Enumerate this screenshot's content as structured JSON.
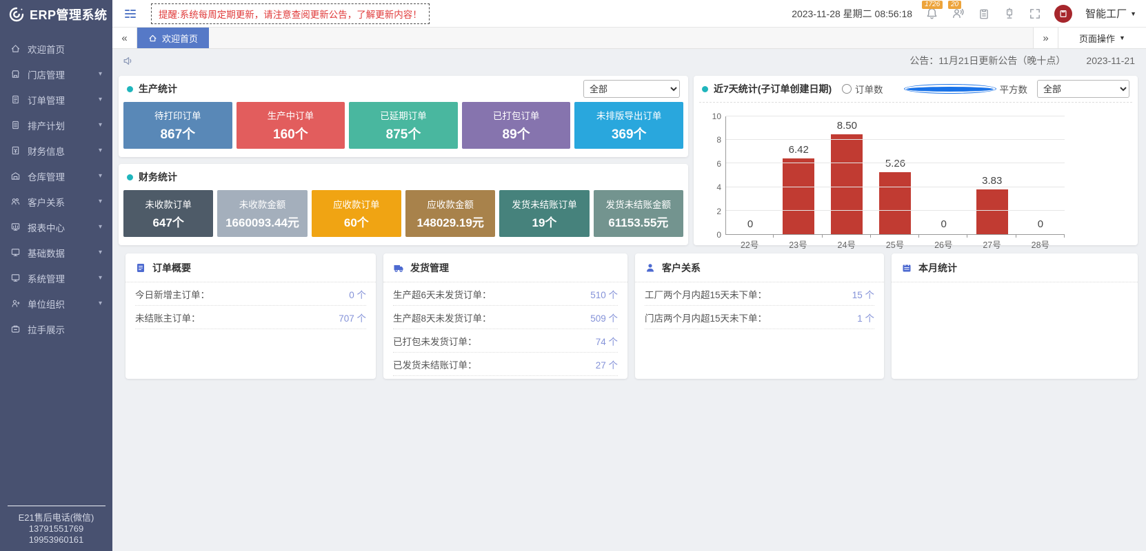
{
  "app": {
    "logo_text": "ERP管理系统"
  },
  "sidebar": {
    "items": [
      {
        "key": "home",
        "label": "欢迎首页",
        "icon": "home",
        "arrow": false
      },
      {
        "key": "stores",
        "label": "门店管理",
        "icon": "store",
        "arrow": true
      },
      {
        "key": "orders",
        "label": "订单管理",
        "icon": "order-doc",
        "arrow": true
      },
      {
        "key": "plan",
        "label": "排产计划",
        "icon": "plan-doc",
        "arrow": true
      },
      {
        "key": "finance",
        "label": "财务信息",
        "icon": "finance-doc",
        "arrow": true
      },
      {
        "key": "warehouse",
        "label": "仓库管理",
        "icon": "warehouse",
        "arrow": true
      },
      {
        "key": "customers",
        "label": "客户关系",
        "icon": "users",
        "arrow": true
      },
      {
        "key": "reports",
        "label": "报表中心",
        "icon": "report",
        "arrow": true
      },
      {
        "key": "basedata",
        "label": "基础数据",
        "icon": "monitor",
        "arrow": true
      },
      {
        "key": "system",
        "label": "系统管理",
        "icon": "monitor",
        "arrow": true
      },
      {
        "key": "org",
        "label": "单位组织",
        "icon": "org-person",
        "arrow": true
      },
      {
        "key": "handshake",
        "label": "拉手展示",
        "icon": "handshake",
        "arrow": false
      }
    ],
    "footer_lines": [
      "E21售后电话(微信)",
      "13791551769",
      "19953960161"
    ]
  },
  "topbar": {
    "notice": "提醒:系统每周定期更新，请注意查阅更新公告，了解更新内容！",
    "datetime": "2023-11-28 星期二 08:56:18",
    "bell_badge": "1726",
    "message_badge": "20",
    "company": "智能工厂"
  },
  "tabbar": {
    "active_tab": "欢迎首页",
    "page_actions_label": "页面操作"
  },
  "announcement": {
    "text": "公告：11月21日更新公告（晚十点）",
    "date": "2023-11-21"
  },
  "production": {
    "title": "生产统计",
    "filter_value": "全部",
    "cards": [
      {
        "label": "待打印订单",
        "value": "867个",
        "color": "#5988b7"
      },
      {
        "label": "生产中订单",
        "value": "160个",
        "color": "#e25d5d"
      },
      {
        "label": "已延期订单",
        "value": "875个",
        "color": "#49b79f"
      },
      {
        "label": "已打包订单",
        "value": "89个",
        "color": "#8674ae"
      },
      {
        "label": "未排版导出订单",
        "value": "369个",
        "color": "#29a7dd"
      }
    ]
  },
  "finance": {
    "title": "财务统计",
    "cards": [
      {
        "label": "未收款订单",
        "value": "647个",
        "color": "#4e5b68"
      },
      {
        "label": "未收款金额",
        "value": "1660093.44元",
        "color": "#a4afbc"
      },
      {
        "label": "应收款订单",
        "value": "60个",
        "color": "#f0a413"
      },
      {
        "label": "应收款金额",
        "value": "148029.19元",
        "color": "#a8824b"
      },
      {
        "label": "发货未结账订单",
        "value": "19个",
        "color": "#46827c"
      },
      {
        "label": "发货未结账金额",
        "value": "61153.55元",
        "color": "#73948f"
      }
    ]
  },
  "chart": {
    "title": "近7天统计(子订单创建日期)",
    "radios": [
      {
        "label": "订单数",
        "selected": false
      },
      {
        "label": "平方数",
        "selected": true
      }
    ],
    "filter_value": "全部"
  },
  "chart_data": {
    "type": "bar",
    "title": "近7天统计(子订单创建日期)",
    "categories": [
      "22号",
      "23号",
      "24号",
      "25号",
      "26号",
      "27号",
      "28号"
    ],
    "values": [
      0,
      6.42,
      8.5,
      5.26,
      0,
      3.83,
      0
    ],
    "ylim": [
      0,
      10
    ],
    "yticks": [
      0,
      2,
      4,
      6,
      8,
      10
    ],
    "bar_color": "#c13b32",
    "grid": true,
    "xlabel": "",
    "ylabel": "",
    "legend": "none"
  },
  "summary_panels": [
    {
      "key": "order-summary",
      "title": "订单概要",
      "icon": "document",
      "rows": [
        {
          "label": "今日新增主订单：",
          "value": "0 个"
        },
        {
          "label": "未结账主订单：",
          "value": "707 个"
        }
      ]
    },
    {
      "key": "shipping",
      "title": "发货管理",
      "icon": "truck",
      "rows": [
        {
          "label": "生产超6天未发货订单：",
          "value": "510 个"
        },
        {
          "label": "生产超8天未发货订单：",
          "value": "509 个"
        },
        {
          "label": "已打包未发货订单：",
          "value": "74 个"
        },
        {
          "label": "已发货未结账订单：",
          "value": "27 个"
        }
      ]
    },
    {
      "key": "customer-relations",
      "title": "客户关系",
      "icon": "customer",
      "rows": [
        {
          "label": "工厂两个月内超15天未下单：",
          "value": "15 个"
        },
        {
          "label": "门店两个月内超15天未下单：",
          "value": "1 个"
        }
      ]
    },
    {
      "key": "month-stats",
      "title": "本月统计",
      "icon": "calendar",
      "rows": []
    }
  ],
  "theme": {
    "sidebar_bg": "#485170",
    "active_tab": "#5679c7",
    "badge": "#eda43c",
    "notice_red": "#e03b3b",
    "panel_dot": "#1fb5bc",
    "value_blue": "#8492d8",
    "content_bg": "#eef0f3",
    "bar_color": "#c13b32"
  }
}
